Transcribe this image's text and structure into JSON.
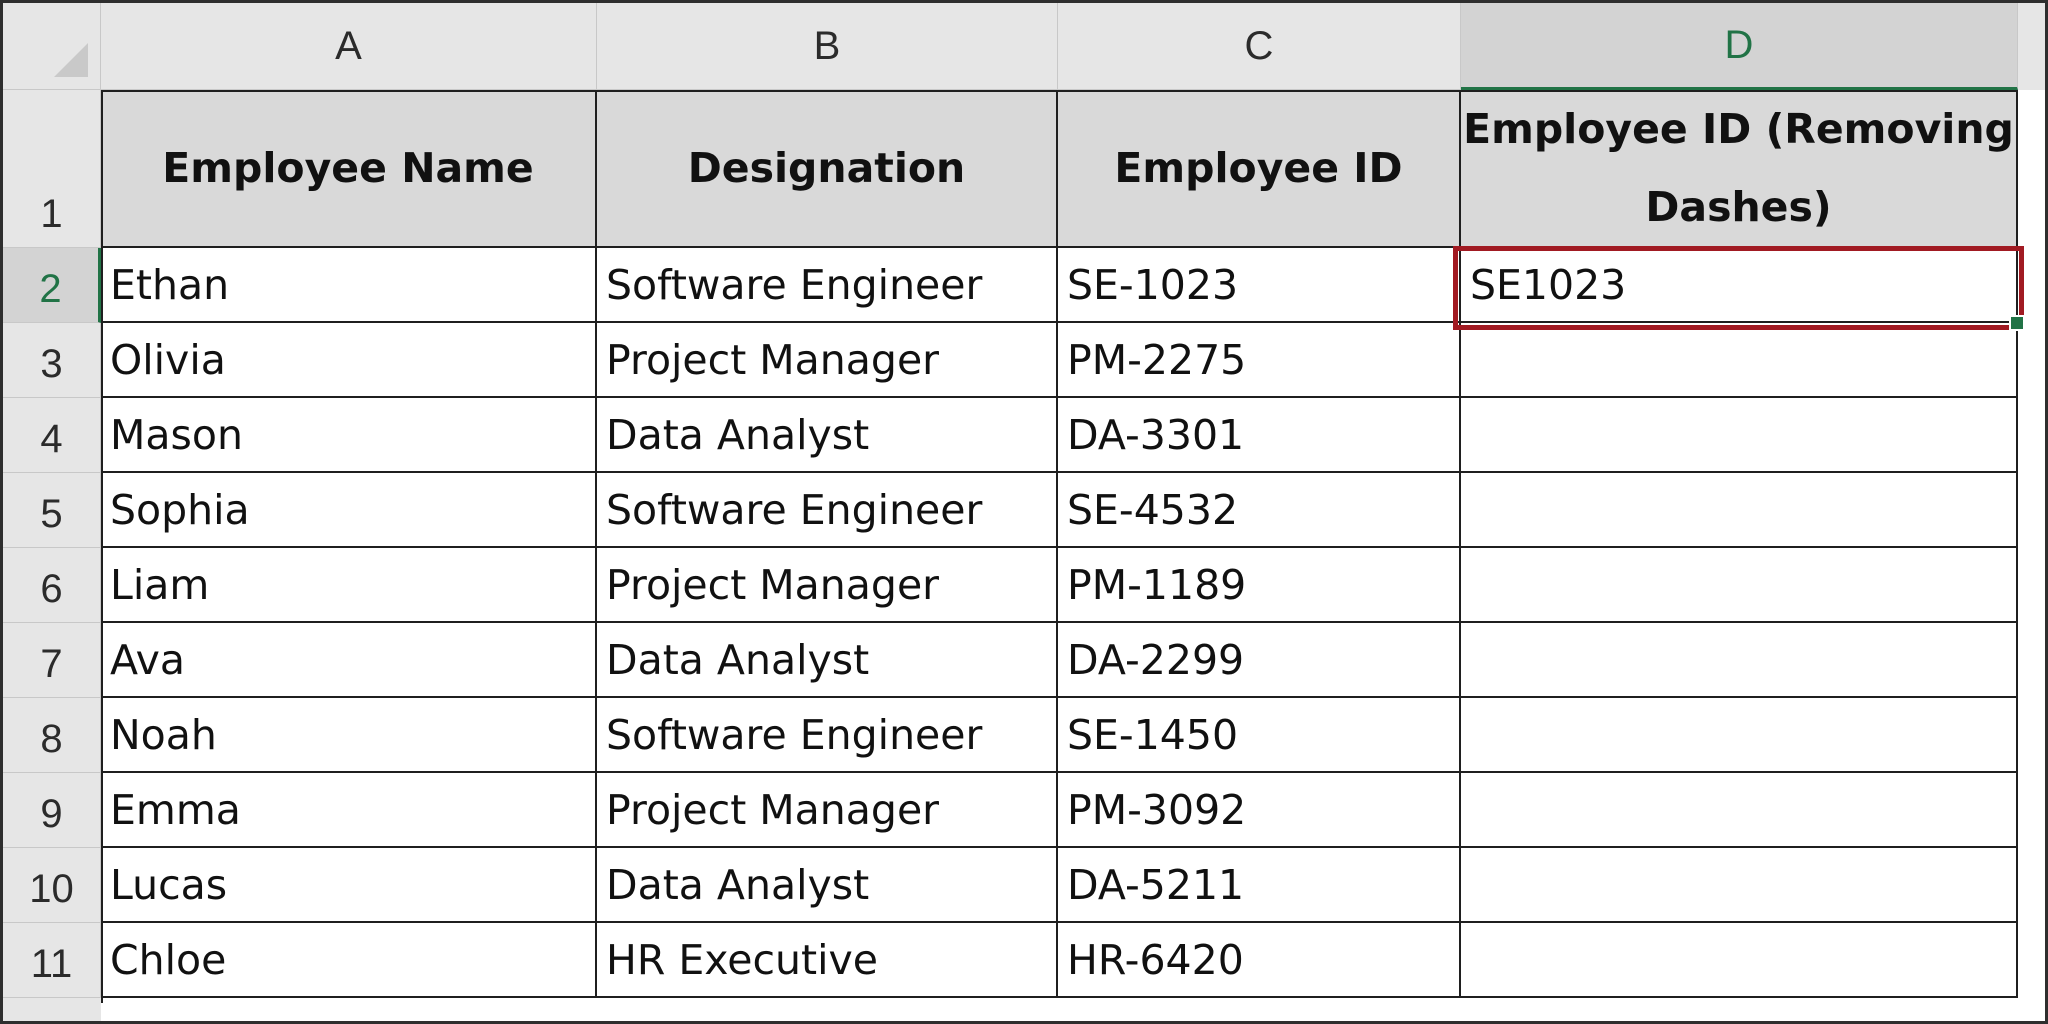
{
  "columns": [
    "A",
    "B",
    "C",
    "D"
  ],
  "active_column": "D",
  "row_numbers": [
    "1",
    "2",
    "3",
    "4",
    "5",
    "6",
    "7",
    "8",
    "9",
    "10",
    "11"
  ],
  "active_row": "2",
  "table": {
    "headers": [
      "Employee Name",
      "Designation",
      "Employee ID",
      "Employee ID (Removing Dashes)"
    ],
    "rows": [
      [
        "Ethan",
        "Software Engineer",
        "SE-1023",
        "SE1023"
      ],
      [
        "Olivia",
        "Project Manager",
        "PM-2275",
        ""
      ],
      [
        "Mason",
        "Data Analyst",
        "DA-3301",
        ""
      ],
      [
        "Sophia",
        "Software Engineer",
        "SE-4532",
        ""
      ],
      [
        "Liam",
        "Project Manager",
        "PM-1189",
        ""
      ],
      [
        "Ava",
        "Data Analyst",
        "DA-2299",
        ""
      ],
      [
        "Noah",
        "Software Engineer",
        "SE-1450",
        ""
      ],
      [
        "Emma",
        "Project Manager",
        "PM-3092",
        ""
      ],
      [
        "Lucas",
        "Data Analyst",
        "DA-5211",
        ""
      ],
      [
        "Chloe",
        "HR Executive",
        "HR-6420",
        ""
      ]
    ]
  },
  "selected_cell": "D2",
  "colors": {
    "selection_border": "#a11a22",
    "excel_green": "#217346",
    "header_fill": "#d9d9d9"
  }
}
